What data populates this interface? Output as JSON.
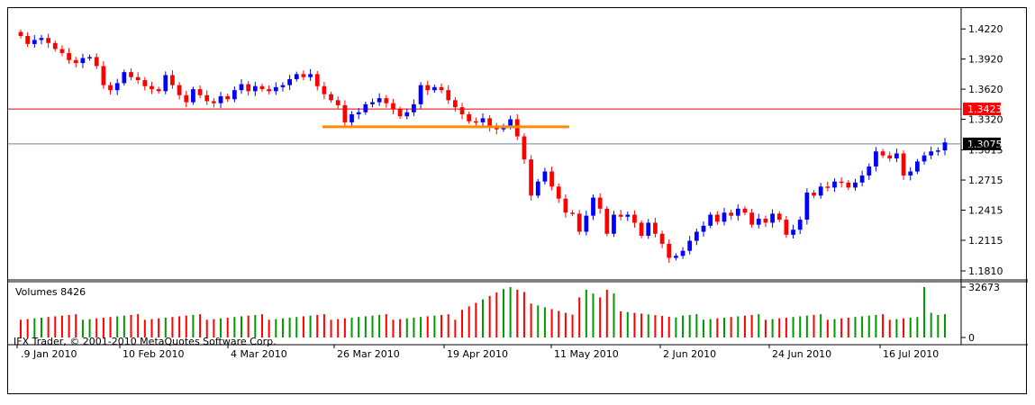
{
  "chart_data": [
    {
      "type": "candlestick",
      "panel": "price",
      "timeframe": "daily",
      "y_ticks": [
        "1.4220",
        "1.3920",
        "1.3620",
        "1.3320",
        "1.3015",
        "1.2715",
        "1.2415",
        "1.2115",
        "1.1810"
      ],
      "ylim": [
        1.181,
        1.432
      ],
      "x_tick_labels": [
        ".9 Jan 2010",
        "10 Feb 2010",
        "4 Mar 2010",
        "26 Mar 2010",
        "19 Apr 2010",
        "11 May 2010",
        "2 Jun 2010",
        "24 Jun 2010",
        "16 Jul 2010"
      ],
      "bullish_color": "#0000ff",
      "bearish_color": "#ff0000",
      "horizontal_lines": [
        {
          "value": 1.3423,
          "label": "1.3423",
          "color": "#e00000"
        },
        {
          "value": 1.3075,
          "label": "1.3075",
          "color": "#6688aa"
        }
      ],
      "support_segment": {
        "value": 1.3245,
        "color": "#ff8c00"
      },
      "closes": [
        1.415,
        1.407,
        1.411,
        1.413,
        1.408,
        1.402,
        1.398,
        1.391,
        1.388,
        1.393,
        1.394,
        1.385,
        1.366,
        1.361,
        1.368,
        1.379,
        1.374,
        1.371,
        1.365,
        1.362,
        1.36,
        1.376,
        1.366,
        1.356,
        1.349,
        1.362,
        1.356,
        1.35,
        1.348,
        1.355,
        1.352,
        1.361,
        1.367,
        1.36,
        1.365,
        1.362,
        1.36,
        1.364,
        1.366,
        1.372,
        1.377,
        1.374,
        1.377,
        1.365,
        1.357,
        1.351,
        1.346,
        1.329,
        1.337,
        1.339,
        1.347,
        1.349,
        1.353,
        1.348,
        1.342,
        1.335,
        1.339,
        1.347,
        1.366,
        1.361,
        1.364,
        1.361,
        1.351,
        1.344,
        1.337,
        1.33,
        1.329,
        1.333,
        1.324,
        1.322,
        1.325,
        1.332,
        1.315,
        1.292,
        1.256,
        1.27,
        1.28,
        1.265,
        1.253,
        1.239,
        1.238,
        1.22,
        1.236,
        1.254,
        1.243,
        1.218,
        1.237,
        1.235,
        1.237,
        1.229,
        1.216,
        1.229,
        1.218,
        1.208,
        1.194,
        1.196,
        1.201,
        1.211,
        1.22,
        1.226,
        1.237,
        1.23,
        1.239,
        1.236,
        1.243,
        1.239,
        1.227,
        1.233,
        1.229,
        1.238,
        1.232,
        1.217,
        1.222,
        1.232,
        1.259,
        1.256,
        1.265,
        1.264,
        1.27,
        1.269,
        1.264,
        1.269,
        1.276,
        1.285,
        1.3,
        1.296,
        1.293,
        1.298,
        1.276,
        1.28,
        1.29,
        1.296,
        1.3,
        1.301,
        1.309
      ]
    },
    {
      "type": "bar",
      "panel": "volume",
      "title": "Volumes 8426",
      "y_ticks": [
        "32673",
        "0"
      ],
      "ylim": [
        0,
        32673
      ],
      "watermark": "IFX Trader, © 2001-2010 MetaQuotes Software Corp."
    }
  ]
}
